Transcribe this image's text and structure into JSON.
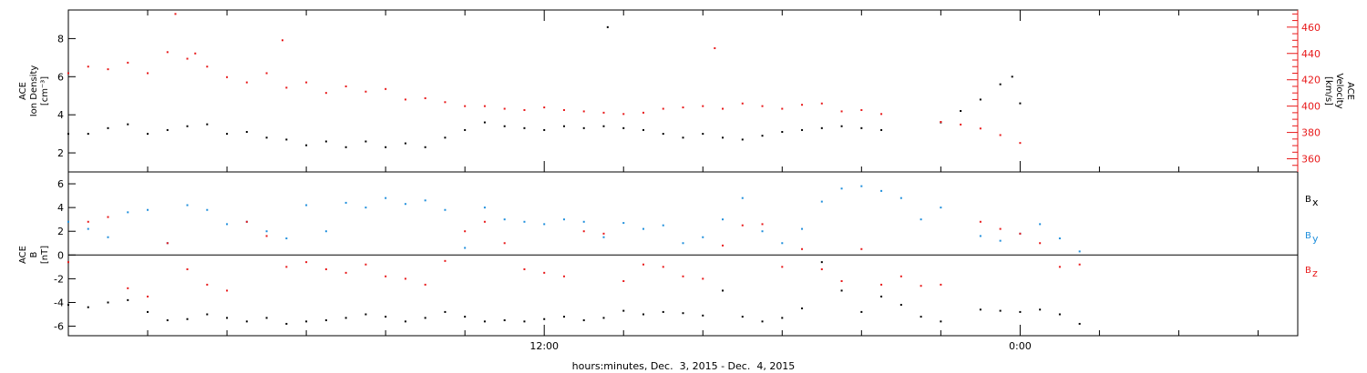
{
  "chart_data": [
    {
      "type": "scatter",
      "panel": "top",
      "ylabel": [
        "ACE",
        "Ion Density",
        "[cm⁻³]"
      ],
      "ylim": [
        1,
        9.5
      ],
      "yticks": [
        2,
        4,
        6,
        8
      ],
      "right_axis": {
        "label": [
          "ACE",
          "Velocity",
          "[km/s]"
        ],
        "ylim": [
          350,
          473
        ],
        "ticks": [
          360,
          380,
          400,
          420,
          440,
          460
        ],
        "color": "#e8191a"
      },
      "series": [
        {
          "color": "#000000",
          "axis": "left",
          "points": [
            [
              0.0,
              3.0
            ],
            [
              0.5,
              3.0
            ],
            [
              1.0,
              3.3
            ],
            [
              1.5,
              3.5
            ],
            [
              2.0,
              3.0
            ],
            [
              2.5,
              3.2
            ],
            [
              3.0,
              3.4
            ],
            [
              3.5,
              3.5
            ],
            [
              4.0,
              3.0
            ],
            [
              4.5,
              3.1
            ],
            [
              5.0,
              2.8
            ],
            [
              5.5,
              2.7
            ],
            [
              6.0,
              2.4
            ],
            [
              6.5,
              2.6
            ],
            [
              7.0,
              2.3
            ],
            [
              7.5,
              2.6
            ],
            [
              8.0,
              2.3
            ],
            [
              8.5,
              2.5
            ],
            [
              9.0,
              2.3
            ],
            [
              9.5,
              2.8
            ],
            [
              10.0,
              3.2
            ],
            [
              10.5,
              3.6
            ],
            [
              11.0,
              3.4
            ],
            [
              11.5,
              3.3
            ],
            [
              12.0,
              3.2
            ],
            [
              12.5,
              3.4
            ],
            [
              13.0,
              3.3
            ],
            [
              13.5,
              3.4
            ],
            [
              14.0,
              3.3
            ],
            [
              14.5,
              3.2
            ],
            [
              15.0,
              3.0
            ],
            [
              15.5,
              2.8
            ],
            [
              16.0,
              3.0
            ],
            [
              16.5,
              2.8
            ],
            [
              17.0,
              2.7
            ],
            [
              17.5,
              2.9
            ],
            [
              18.0,
              3.1
            ],
            [
              18.5,
              3.2
            ],
            [
              19.0,
              3.3
            ],
            [
              19.5,
              3.4
            ],
            [
              20.0,
              3.3
            ],
            [
              20.5,
              3.2
            ],
            [
              22.0,
              3.6
            ],
            [
              22.5,
              4.2
            ],
            [
              23.0,
              4.8
            ],
            [
              23.5,
              5.6
            ],
            [
              23.8,
              6.0
            ],
            [
              13.6,
              8.6
            ],
            [
              24.0,
              4.6
            ]
          ]
        },
        {
          "color": "#e8191a",
          "axis": "right",
          "points": [
            [
              0.0,
              425
            ],
            [
              0.5,
              430
            ],
            [
              1.0,
              428
            ],
            [
              1.5,
              433
            ],
            [
              2.0,
              425
            ],
            [
              2.5,
              441
            ],
            [
              3.0,
              436
            ],
            [
              3.5,
              430
            ],
            [
              4.0,
              422
            ],
            [
              4.5,
              418
            ],
            [
              5.0,
              425
            ],
            [
              5.5,
              414
            ],
            [
              6.0,
              418
            ],
            [
              6.5,
              410
            ],
            [
              7.0,
              415
            ],
            [
              7.5,
              411
            ],
            [
              8.0,
              413
            ],
            [
              8.5,
              405
            ],
            [
              9.0,
              406
            ],
            [
              9.5,
              403
            ],
            [
              10.0,
              400
            ],
            [
              10.5,
              400
            ],
            [
              11.0,
              398
            ],
            [
              11.5,
              397
            ],
            [
              12.0,
              399
            ],
            [
              12.5,
              397
            ],
            [
              13.0,
              396
            ],
            [
              13.5,
              395
            ],
            [
              14.0,
              394
            ],
            [
              14.5,
              395
            ],
            [
              15.0,
              398
            ],
            [
              15.5,
              399
            ],
            [
              16.0,
              400
            ],
            [
              16.5,
              398
            ],
            [
              17.0,
              402
            ],
            [
              17.5,
              400
            ],
            [
              18.0,
              398
            ],
            [
              18.5,
              401
            ],
            [
              19.0,
              402
            ],
            [
              19.5,
              396
            ],
            [
              20.0,
              397
            ],
            [
              20.5,
              394
            ],
            [
              22.0,
              388
            ],
            [
              22.5,
              386
            ],
            [
              23.0,
              383
            ],
            [
              23.5,
              378
            ],
            [
              24.0,
              372
            ],
            [
              2.7,
              470
            ],
            [
              3.2,
              440
            ],
            [
              5.4,
              450
            ],
            [
              16.3,
              444
            ]
          ]
        }
      ]
    },
    {
      "type": "scatter",
      "panel": "bottom",
      "ylabel": [
        "ACE",
        "B",
        "[nT]"
      ],
      "ylim": [
        -6.8,
        7.0
      ],
      "yticks": [
        -6,
        -4,
        -2,
        0,
        2,
        4,
        6
      ],
      "zero_line": true,
      "legend": [
        {
          "main": "B",
          "sub": "x",
          "color": "#000000"
        },
        {
          "main": "B",
          "sub": "y",
          "color": "#1f8fdc"
        },
        {
          "main": "B",
          "sub": "z",
          "color": "#e8191a"
        }
      ],
      "series": [
        {
          "name": "Bx",
          "color": "#000000",
          "points": [
            [
              0.0,
              -4.2
            ],
            [
              0.5,
              -4.4
            ],
            [
              1.0,
              -4.0
            ],
            [
              1.5,
              -3.8
            ],
            [
              2.0,
              -4.8
            ],
            [
              2.5,
              -5.5
            ],
            [
              3.0,
              -5.4
            ],
            [
              3.5,
              -5.0
            ],
            [
              4.0,
              -5.3
            ],
            [
              4.5,
              -5.6
            ],
            [
              5.0,
              -5.3
            ],
            [
              5.5,
              -5.8
            ],
            [
              6.0,
              -5.6
            ],
            [
              6.5,
              -5.5
            ],
            [
              7.0,
              -5.3
            ],
            [
              7.5,
              -5.0
            ],
            [
              8.0,
              -5.2
            ],
            [
              8.5,
              -5.6
            ],
            [
              9.0,
              -5.3
            ],
            [
              9.5,
              -4.8
            ],
            [
              10.0,
              -5.2
            ],
            [
              10.5,
              -5.6
            ],
            [
              11.0,
              -5.5
            ],
            [
              11.5,
              -5.6
            ],
            [
              12.0,
              -5.4
            ],
            [
              12.5,
              -5.2
            ],
            [
              13.0,
              -5.5
            ],
            [
              13.5,
              -5.3
            ],
            [
              14.0,
              -4.7
            ],
            [
              14.5,
              -5.0
            ],
            [
              15.0,
              -4.8
            ],
            [
              15.5,
              -4.9
            ],
            [
              16.0,
              -5.1
            ],
            [
              16.5,
              -3.0
            ],
            [
              17.0,
              -5.2
            ],
            [
              17.5,
              -5.6
            ],
            [
              18.0,
              -5.3
            ],
            [
              18.5,
              -4.5
            ],
            [
              19.0,
              -0.6
            ],
            [
              19.5,
              -3.0
            ],
            [
              20.0,
              -4.8
            ],
            [
              20.5,
              -3.5
            ],
            [
              21.0,
              -4.2
            ],
            [
              21.5,
              -5.2
            ],
            [
              22.0,
              -5.6
            ],
            [
              23.0,
              -4.6
            ],
            [
              23.5,
              -4.7
            ],
            [
              24.0,
              -4.8
            ],
            [
              24.5,
              -4.6
            ],
            [
              25.0,
              -5.0
            ],
            [
              25.5,
              -5.8
            ]
          ]
        },
        {
          "name": "By",
          "color": "#1f8fdc",
          "points": [
            [
              0.0,
              2.8
            ],
            [
              0.5,
              2.2
            ],
            [
              1.0,
              1.5
            ],
            [
              1.5,
              3.6
            ],
            [
              2.0,
              3.8
            ],
            [
              2.5,
              1.0
            ],
            [
              3.0,
              4.2
            ],
            [
              3.5,
              3.8
            ],
            [
              4.0,
              2.6
            ],
            [
              4.5,
              2.8
            ],
            [
              5.0,
              2.0
            ],
            [
              5.5,
              1.4
            ],
            [
              6.0,
              4.2
            ],
            [
              6.5,
              2.0
            ],
            [
              7.0,
              4.4
            ],
            [
              7.5,
              4.0
            ],
            [
              8.0,
              4.8
            ],
            [
              8.5,
              4.3
            ],
            [
              9.0,
              4.6
            ],
            [
              9.5,
              3.8
            ],
            [
              10.0,
              0.6
            ],
            [
              10.5,
              4.0
            ],
            [
              11.0,
              3.0
            ],
            [
              11.5,
              2.8
            ],
            [
              12.0,
              2.6
            ],
            [
              12.5,
              3.0
            ],
            [
              13.0,
              2.8
            ],
            [
              13.5,
              1.5
            ],
            [
              14.0,
              2.7
            ],
            [
              14.5,
              2.2
            ],
            [
              15.0,
              2.5
            ],
            [
              15.5,
              1.0
            ],
            [
              16.0,
              1.5
            ],
            [
              16.5,
              3.0
            ],
            [
              17.0,
              4.8
            ],
            [
              17.5,
              2.0
            ],
            [
              18.0,
              1.0
            ],
            [
              18.5,
              2.2
            ],
            [
              19.0,
              4.5
            ],
            [
              19.5,
              5.6
            ],
            [
              20.0,
              5.8
            ],
            [
              20.5,
              5.4
            ],
            [
              21.0,
              4.8
            ],
            [
              21.5,
              3.0
            ],
            [
              22.0,
              4.0
            ],
            [
              23.0,
              1.6
            ],
            [
              23.5,
              1.2
            ],
            [
              24.0,
              1.8
            ],
            [
              24.5,
              2.6
            ],
            [
              25.0,
              1.4
            ],
            [
              25.5,
              0.3
            ]
          ]
        },
        {
          "name": "Bz",
          "color": "#e8191a",
          "points": [
            [
              0.0,
              -0.6
            ],
            [
              0.5,
              2.8
            ],
            [
              1.0,
              3.2
            ],
            [
              1.5,
              -2.8
            ],
            [
              2.0,
              -3.5
            ],
            [
              2.5,
              1.0
            ],
            [
              3.0,
              -1.2
            ],
            [
              3.5,
              -2.5
            ],
            [
              4.0,
              -3.0
            ],
            [
              4.5,
              2.8
            ],
            [
              5.0,
              1.6
            ],
            [
              5.5,
              -1.0
            ],
            [
              6.0,
              -0.6
            ],
            [
              6.5,
              -1.2
            ],
            [
              7.0,
              -1.5
            ],
            [
              7.5,
              -0.8
            ],
            [
              8.0,
              -1.8
            ],
            [
              8.5,
              -2.0
            ],
            [
              9.0,
              -2.5
            ],
            [
              9.5,
              -0.5
            ],
            [
              10.0,
              2.0
            ],
            [
              10.5,
              2.8
            ],
            [
              11.0,
              1.0
            ],
            [
              11.5,
              -1.2
            ],
            [
              12.0,
              -1.5
            ],
            [
              12.5,
              -1.8
            ],
            [
              13.0,
              2.0
            ],
            [
              13.5,
              1.8
            ],
            [
              14.0,
              -2.2
            ],
            [
              14.5,
              -0.8
            ],
            [
              15.0,
              -1.0
            ],
            [
              15.5,
              -1.8
            ],
            [
              16.0,
              -2.0
            ],
            [
              16.5,
              0.8
            ],
            [
              17.0,
              2.5
            ],
            [
              17.5,
              2.6
            ],
            [
              18.0,
              -1.0
            ],
            [
              18.5,
              0.5
            ],
            [
              19.0,
              -1.2
            ],
            [
              19.5,
              -2.2
            ],
            [
              20.0,
              0.5
            ],
            [
              20.5,
              -2.5
            ],
            [
              21.0,
              -1.8
            ],
            [
              21.5,
              -2.6
            ],
            [
              22.0,
              -2.5
            ],
            [
              23.0,
              2.8
            ],
            [
              23.5,
              2.2
            ],
            [
              24.0,
              1.8
            ],
            [
              24.5,
              1.0
            ],
            [
              25.0,
              -1.0
            ],
            [
              25.5,
              -0.8
            ]
          ]
        }
      ]
    }
  ],
  "x_axis": {
    "xlim": [
      0,
      31
    ],
    "labeled_ticks": [
      {
        "at": 12,
        "label": "12:00"
      },
      {
        "at": 24,
        "label": "0:00"
      }
    ],
    "minor_step": 2,
    "xlabel": "hours:minutes, Dec.  3, 2015 - Dec.  4, 2015"
  }
}
